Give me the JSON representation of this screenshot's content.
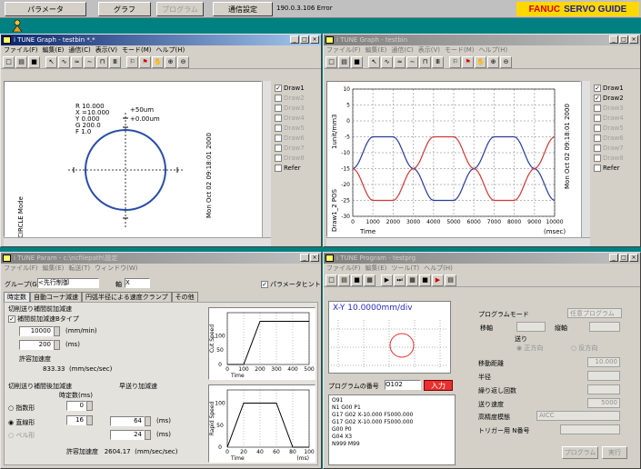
{
  "topbar": {
    "buttons": [
      "パラメータ",
      "グラフ",
      "プログラム",
      "通信設定"
    ],
    "status": "190.0.3.106 Error",
    "brand_red": "FANUC",
    "brand_blue": "SERVO GUIDE"
  },
  "win1": {
    "title": "i TUNE Graph - testbin *.*",
    "menu": [
      "ファイル(F)",
      "編集(E)",
      "通信(C)",
      "表示(V)",
      "モード(M)",
      "ヘルプ(H)"
    ],
    "params": [
      "R 10.000",
      "X =10.000",
      "Y 0.000",
      "G 200.0",
      "F 1.0"
    ],
    "scale_top": "+50um",
    "scale_second": "+0.00um",
    "mode_label": "CIRCLE Mode",
    "date": "Mon Oct 02 09:18:01 2000",
    "legend": [
      {
        "label": "Draw1",
        "checked": true
      },
      {
        "label": "Draw2",
        "checked": false
      },
      {
        "label": "Draw3",
        "checked": false
      },
      {
        "label": "Draw4",
        "checked": false
      },
      {
        "label": "Draw5",
        "checked": false
      },
      {
        "label": "Draw6",
        "checked": false
      },
      {
        "label": "Draw7",
        "checked": false
      },
      {
        "label": "Draw8",
        "checked": false
      },
      {
        "label": "Refer",
        "checked": false
      }
    ]
  },
  "win2": {
    "title": "i TUNE Graph - testbin",
    "menu": [
      "ファイル(F)",
      "編集(E)",
      "通信(C)",
      "表示(V)",
      "モード(M)",
      "ヘルプ(H)"
    ],
    "ylabel_top": "1unit/mm3",
    "ylabel_bottom": "Draw1_2 POS",
    "date": "Mon Oct 02 09:18:01 2000",
    "xlabel": "Time",
    "xunit": "(msec)",
    "legend": [
      {
        "label": "Draw1",
        "checked": true
      },
      {
        "label": "Draw2",
        "checked": true
      },
      {
        "label": "Draw3",
        "checked": false
      },
      {
        "label": "Draw4",
        "checked": false
      },
      {
        "label": "Draw5",
        "checked": false
      },
      {
        "label": "Draw6",
        "checked": false
      },
      {
        "label": "Draw7",
        "checked": false
      },
      {
        "label": "Draw8",
        "checked": false
      },
      {
        "label": "Refer",
        "checked": false
      }
    ]
  },
  "chart_data": [
    {
      "type": "line",
      "x": [
        0,
        1000,
        2000,
        3000,
        4000,
        5000,
        6000,
        7000,
        8000,
        9000,
        10000
      ],
      "xlabel": "Time",
      "ylabel": "1unit/mm3",
      "xlim": [
        0,
        10000
      ],
      "ylim": [
        -30,
        10
      ],
      "y_ticks": [
        10,
        5,
        0,
        -5,
        -10,
        -15,
        -20,
        -25,
        -30
      ],
      "series": [
        {
          "name": "Draw1",
          "color": "#2a3c9c",
          "values": [
            -15,
            -5,
            -5,
            -15,
            -25,
            -25,
            -15,
            -5,
            -5,
            -15,
            -25
          ]
        },
        {
          "name": "Draw2",
          "color": "#d03838",
          "values": [
            -15,
            -25,
            -25,
            -15,
            -5,
            -5,
            -15,
            -25,
            -25,
            -15,
            -5
          ]
        }
      ],
      "grid": true
    },
    {
      "type": "line",
      "x": [
        0,
        100,
        200,
        300,
        400,
        500
      ],
      "xlabel": "Time",
      "ylabel": "Cut Speed",
      "xlim": [
        0,
        500
      ],
      "y_ticks": [
        0,
        50,
        100
      ],
      "series": [
        {
          "values": [
            0,
            0,
            150,
            150,
            150,
            150
          ]
        }
      ]
    },
    {
      "type": "line",
      "x": [
        0,
        20,
        40,
        60,
        80,
        100
      ],
      "xlabel": "Time",
      "xunit": "(ms)",
      "ylabel": "Rapid Speed",
      "xlim": [
        0,
        100
      ],
      "y_ticks": [
        0,
        50,
        100
      ],
      "series": [
        {
          "values": [
            0,
            100,
            100,
            100,
            0,
            0
          ]
        }
      ]
    }
  ],
  "win3": {
    "title": "i TUNE Param - c:\\ncfilepath\\設定",
    "menu": [
      "ファイル(F)",
      "編集(E)",
      "転送(T)",
      "ウィンドウ(W)"
    ],
    "group_label": "グループ(G)",
    "group_value": "<先行制御",
    "axis_label": "軸",
    "axis_value": "X",
    "param_tip": "パラメータヒント",
    "tabs": [
      "時定数",
      "自動コーナ減速",
      "円弧半径による速度クランプ",
      "その他"
    ],
    "sec1_title": "切削送り補間前加減速",
    "chk1_label": "補間前加減速Bタイプ",
    "feed_value": "10000",
    "feed_unit": "(mm/min)",
    "time_value": "200",
    "time_unit": "(ms)",
    "accel_label": "許容加速度",
    "accel_value": "833.33",
    "accel_unit": "(mm/sec/sec)",
    "sec2_title": "切削送り補間後加減速",
    "sec3_title": "早送り加減速",
    "tc_label": "時定数(ms)",
    "radio1": "指数形",
    "radio1_val": "0",
    "radio2": "直線形",
    "radio2_val": "16",
    "radio3": "ベル形",
    "rapid1": "64",
    "rapid2": "24",
    "ms_unit": "(ms)",
    "permit_accel_label": "許容加速度",
    "permit_accel_value": "2604.17",
    "permit_accel_unit": "(mm/sec/sec)"
  },
  "win4": {
    "title": "i TUNE Program - testprg",
    "menu": [
      "ファイル(F)",
      "編集(E)",
      "ツール(T)",
      "ヘルプ(H)"
    ],
    "xy_label": "X-Y 10.0000mm/div",
    "prog_label": "プログラムの番号",
    "prog_number": "O102",
    "input_btn": "入力",
    "program_lines": [
      "O91",
      "N1 G00 P1",
      "G17 G02 X-10.000 F5000.000",
      "G17 G02 X-10.000 F5000.000",
      "G00 P0",
      "G04 X3",
      "N999 M99"
    ],
    "right": {
      "mode_label": "プログラムモード",
      "mode_value": "任意プログラム",
      "axis1_label": "移軸",
      "axis2_label": "縦軸",
      "dir_label": "送り",
      "opt_a": "正方向",
      "opt_b": "反方向",
      "move_dist": "移動距離",
      "move_value": "10.000",
      "radius": "半径",
      "repeat": "繰り返し回数",
      "feed": "送り速度",
      "feed_value": "5000",
      "hs_mode": "高精度模態",
      "hs_value": "AICC",
      "trigger": "トリガー用 N番号",
      "btn1": "プログラム",
      "btn2": "実行"
    }
  }
}
